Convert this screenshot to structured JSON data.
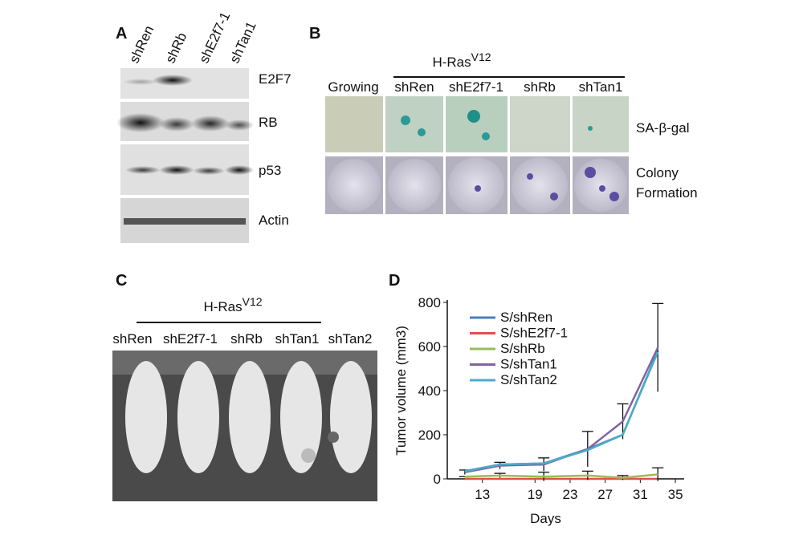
{
  "panel_a": {
    "label": "A",
    "lanes": [
      "shRen",
      "shRb",
      "shE2f7-1",
      "shTan1"
    ],
    "bands": [
      "E2F7",
      "RB",
      "p53",
      "Actin"
    ]
  },
  "panel_b": {
    "label": "B",
    "group": {
      "title": "H-Ras",
      "superscript": "V12"
    },
    "columns": [
      "Growing",
      "shRen",
      "shE2f7-1",
      "shRb",
      "shTan1"
    ],
    "rows": [
      [
        "SA-β-gal"
      ],
      [
        "Colony",
        "Formation"
      ]
    ]
  },
  "panel_c": {
    "label": "C",
    "group": {
      "title": "H-Ras",
      "superscript": "V12"
    },
    "columns": [
      "shRen",
      "shE2f7-1",
      "shRb",
      "shTan1",
      "shTan2"
    ]
  },
  "chart_data": {
    "type": "line",
    "panel_label": "D",
    "x_label": "Days",
    "y_label": "Tumor volume (mm3)",
    "x": [
      11,
      15,
      20,
      25,
      29,
      33
    ],
    "xlim": [
      9,
      36
    ],
    "xticks": [
      13,
      19,
      23,
      27,
      31,
      35
    ],
    "ylim": [
      0,
      800
    ],
    "yticks": [
      0,
      200,
      400,
      600,
      800
    ],
    "legend": "upper-left",
    "series": [
      {
        "name": "S/shRen",
        "color": "#4a7fc1",
        "values": [
          35,
          65,
          70,
          135,
          200,
          580
        ]
      },
      {
        "name": "S/shE2f7-1",
        "color": "#d9534f",
        "values": [
          0,
          0,
          0,
          0,
          0,
          0
        ]
      },
      {
        "name": "S/shRb",
        "color": "#9bbb59",
        "values": [
          10,
          15,
          10,
          15,
          5,
          20
        ],
        "errors": [
          0,
          10,
          20,
          20,
          10,
          30
        ]
      },
      {
        "name": "S/shTan1",
        "color": "#8064a2",
        "values": [
          30,
          60,
          65,
          135,
          260,
          595
        ],
        "errors": [
          10,
          15,
          30,
          80,
          80,
          200
        ]
      },
      {
        "name": "S/shTan2",
        "color": "#4bacc6",
        "values": [
          35,
          65,
          70,
          130,
          200,
          575
        ]
      }
    ]
  }
}
